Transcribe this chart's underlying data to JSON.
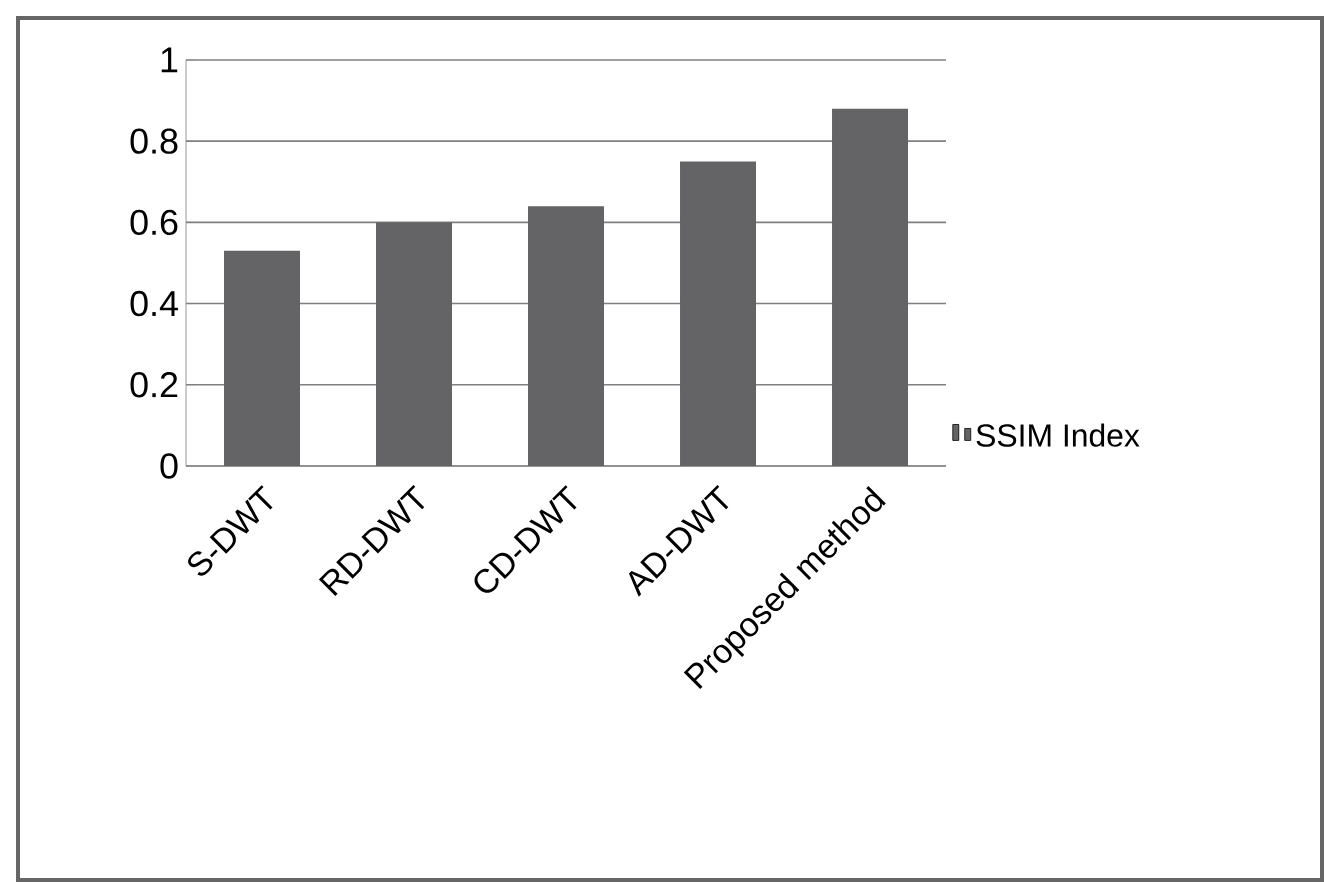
{
  "chart_data": {
    "type": "bar",
    "categories": [
      "S-DWT",
      "RD-DWT",
      "CD-DWT",
      "AD-DWT",
      "Proposed  method"
    ],
    "series": [
      {
        "name": "SSIM Index",
        "color": "#646467",
        "values": [
          0.53,
          0.6,
          0.64,
          0.75,
          0.88
        ]
      }
    ],
    "ylim": [
      0,
      1
    ],
    "yticks": [
      0,
      0.2,
      0.4,
      0.6,
      0.8,
      1
    ],
    "grid": "y",
    "legend": "right"
  }
}
